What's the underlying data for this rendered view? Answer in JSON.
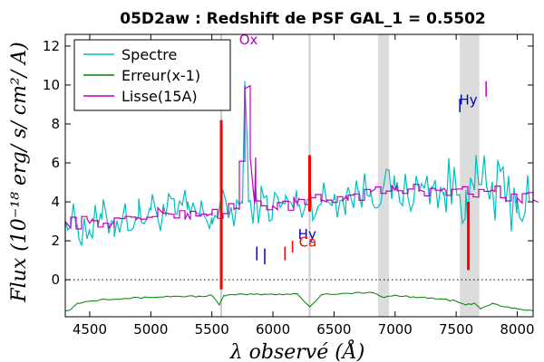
{
  "chart_data": {
    "type": "line",
    "title": "05D2aw : Redshift de PSF GAL_1 = 0.5502",
    "xlabel": "λ observé (Å)",
    "ylabel": "Flux (10⁻¹⁸ erg/ s/ cm²/ A)",
    "xlim": [
      4300,
      8130
    ],
    "ylim": [
      -1.9,
      12.6
    ],
    "xticks": [
      4500,
      5000,
      5500,
      6000,
      6500,
      7000,
      7500,
      8000
    ],
    "yticks": [
      0,
      2,
      4,
      6,
      8,
      10,
      12
    ],
    "xtick_labels": [
      "4500",
      "5000",
      "5500",
      "6000",
      "6500",
      "7000",
      "7500",
      "8000"
    ],
    "ytick_labels": [
      "0",
      "2",
      "4",
      "6",
      "8",
      "10",
      "12"
    ],
    "legend_position": "upper-left",
    "series": [
      {
        "name": "Spectre",
        "color": "#00bfbf",
        "x": [
          4300,
          4400,
          4500,
          4600,
          4700,
          4800,
          4900,
          5000,
          5100,
          5200,
          5300,
          5400,
          5500,
          5560,
          5650,
          5700,
          5750,
          5770,
          5800,
          5900,
          6000,
          6100,
          6200,
          6300,
          6400,
          6500,
          6600,
          6700,
          6800,
          6900,
          7000,
          7100,
          7200,
          7300,
          7400,
          7500,
          7580,
          7600,
          7650,
          7700,
          7750,
          7800,
          7900,
          8000,
          8100
        ],
        "y": [
          3.0,
          2.8,
          2.6,
          3.1,
          3.0,
          3.3,
          3.2,
          3.6,
          3.5,
          3.4,
          3.6,
          3.3,
          3.2,
          3.6,
          3.5,
          3.7,
          3.9,
          10.2,
          4.0,
          3.9,
          3.8,
          3.9,
          3.8,
          4.2,
          4.0,
          4.2,
          4.3,
          4.5,
          4.6,
          4.7,
          4.6,
          4.5,
          4.6,
          4.8,
          4.5,
          4.7,
          4.6,
          3.8,
          4.6,
          4.9,
          4.7,
          4.5,
          4.3,
          4.1,
          4.0
        ]
      },
      {
        "name": "Erreur(x-1)",
        "color": "#008000",
        "x": [
          4300,
          4350,
          4400,
          4500,
          4600,
          4800,
          5000,
          5200,
          5400,
          5500,
          5560,
          5600,
          5800,
          6000,
          6200,
          6300,
          6400,
          6600,
          6800,
          6900,
          7000,
          7200,
          7400,
          7500,
          7580,
          7650,
          7700,
          7800,
          7900,
          8000,
          8130
        ],
        "y": [
          -1.6,
          -1.5,
          -1.2,
          -1.1,
          -1.0,
          -0.95,
          -0.9,
          -0.85,
          -0.85,
          -0.8,
          -1.3,
          -0.8,
          -0.75,
          -0.75,
          -0.72,
          -1.4,
          -0.75,
          -0.7,
          -0.65,
          -0.9,
          -0.8,
          -0.9,
          -1.0,
          -1.1,
          -1.3,
          -1.2,
          -1.5,
          -1.2,
          -1.4,
          -1.5,
          -1.6
        ]
      },
      {
        "name": "Lisse(15A)",
        "color": "#bf00bf",
        "x": [
          4300,
          4500,
          4700,
          4900,
          5100,
          5300,
          5500,
          5700,
          5770,
          5850,
          6000,
          6200,
          6400,
          6600,
          6800,
          7000,
          7200,
          7400,
          7600,
          7800,
          8000,
          8130
        ],
        "y": [
          3.0,
          2.9,
          3.0,
          3.2,
          3.4,
          3.4,
          3.4,
          3.7,
          9.8,
          3.9,
          3.8,
          3.9,
          4.1,
          4.3,
          4.5,
          4.6,
          4.6,
          4.7,
          4.4,
          4.6,
          4.2,
          4.1
        ]
      }
    ],
    "zero_line": 0,
    "shaded_bands": [
      {
        "x0": 6860,
        "x1": 6950
      },
      {
        "x0": 7530,
        "x1": 7690
      }
    ],
    "thin_vertical_lines": [
      5577,
      6300
    ],
    "red_lines": [
      {
        "x": 5577,
        "y0": -0.5,
        "y1": 8.2
      },
      {
        "x": 6300,
        "y0": 3.5,
        "y1": 6.4
      },
      {
        "x": 7600,
        "y0": 0.5,
        "y1": 4.0
      }
    ],
    "annotations": [
      {
        "text": "Ox",
        "x": 5800,
        "y": 12.1,
        "color": "#bf00bf"
      },
      {
        "text": "Hy",
        "x": 6280,
        "y": 2.1,
        "color": "#0000cc"
      },
      {
        "text": "Ca",
        "x": 6285,
        "y": 1.7,
        "color": "#ff0000"
      },
      {
        "text": "Hy",
        "x": 7600,
        "y": 9.0,
        "color": "#0000cc"
      }
    ],
    "markers": [
      {
        "x": 5868,
        "y0": 1.0,
        "y1": 1.7,
        "color": "#0000cc"
      },
      {
        "x": 5933,
        "y0": 0.8,
        "y1": 1.6,
        "color": "#0000cc"
      },
      {
        "x": 6098,
        "y0": 1.0,
        "y1": 1.7,
        "color": "#ff0000"
      },
      {
        "x": 6160,
        "y0": 1.4,
        "y1": 2.0,
        "color": "#ff0000"
      },
      {
        "x": 7530,
        "y0": 8.6,
        "y1": 9.3,
        "color": "#0000cc"
      },
      {
        "x": 7745,
        "y0": 9.4,
        "y1": 10.2,
        "color": "#bf00bf"
      }
    ]
  }
}
